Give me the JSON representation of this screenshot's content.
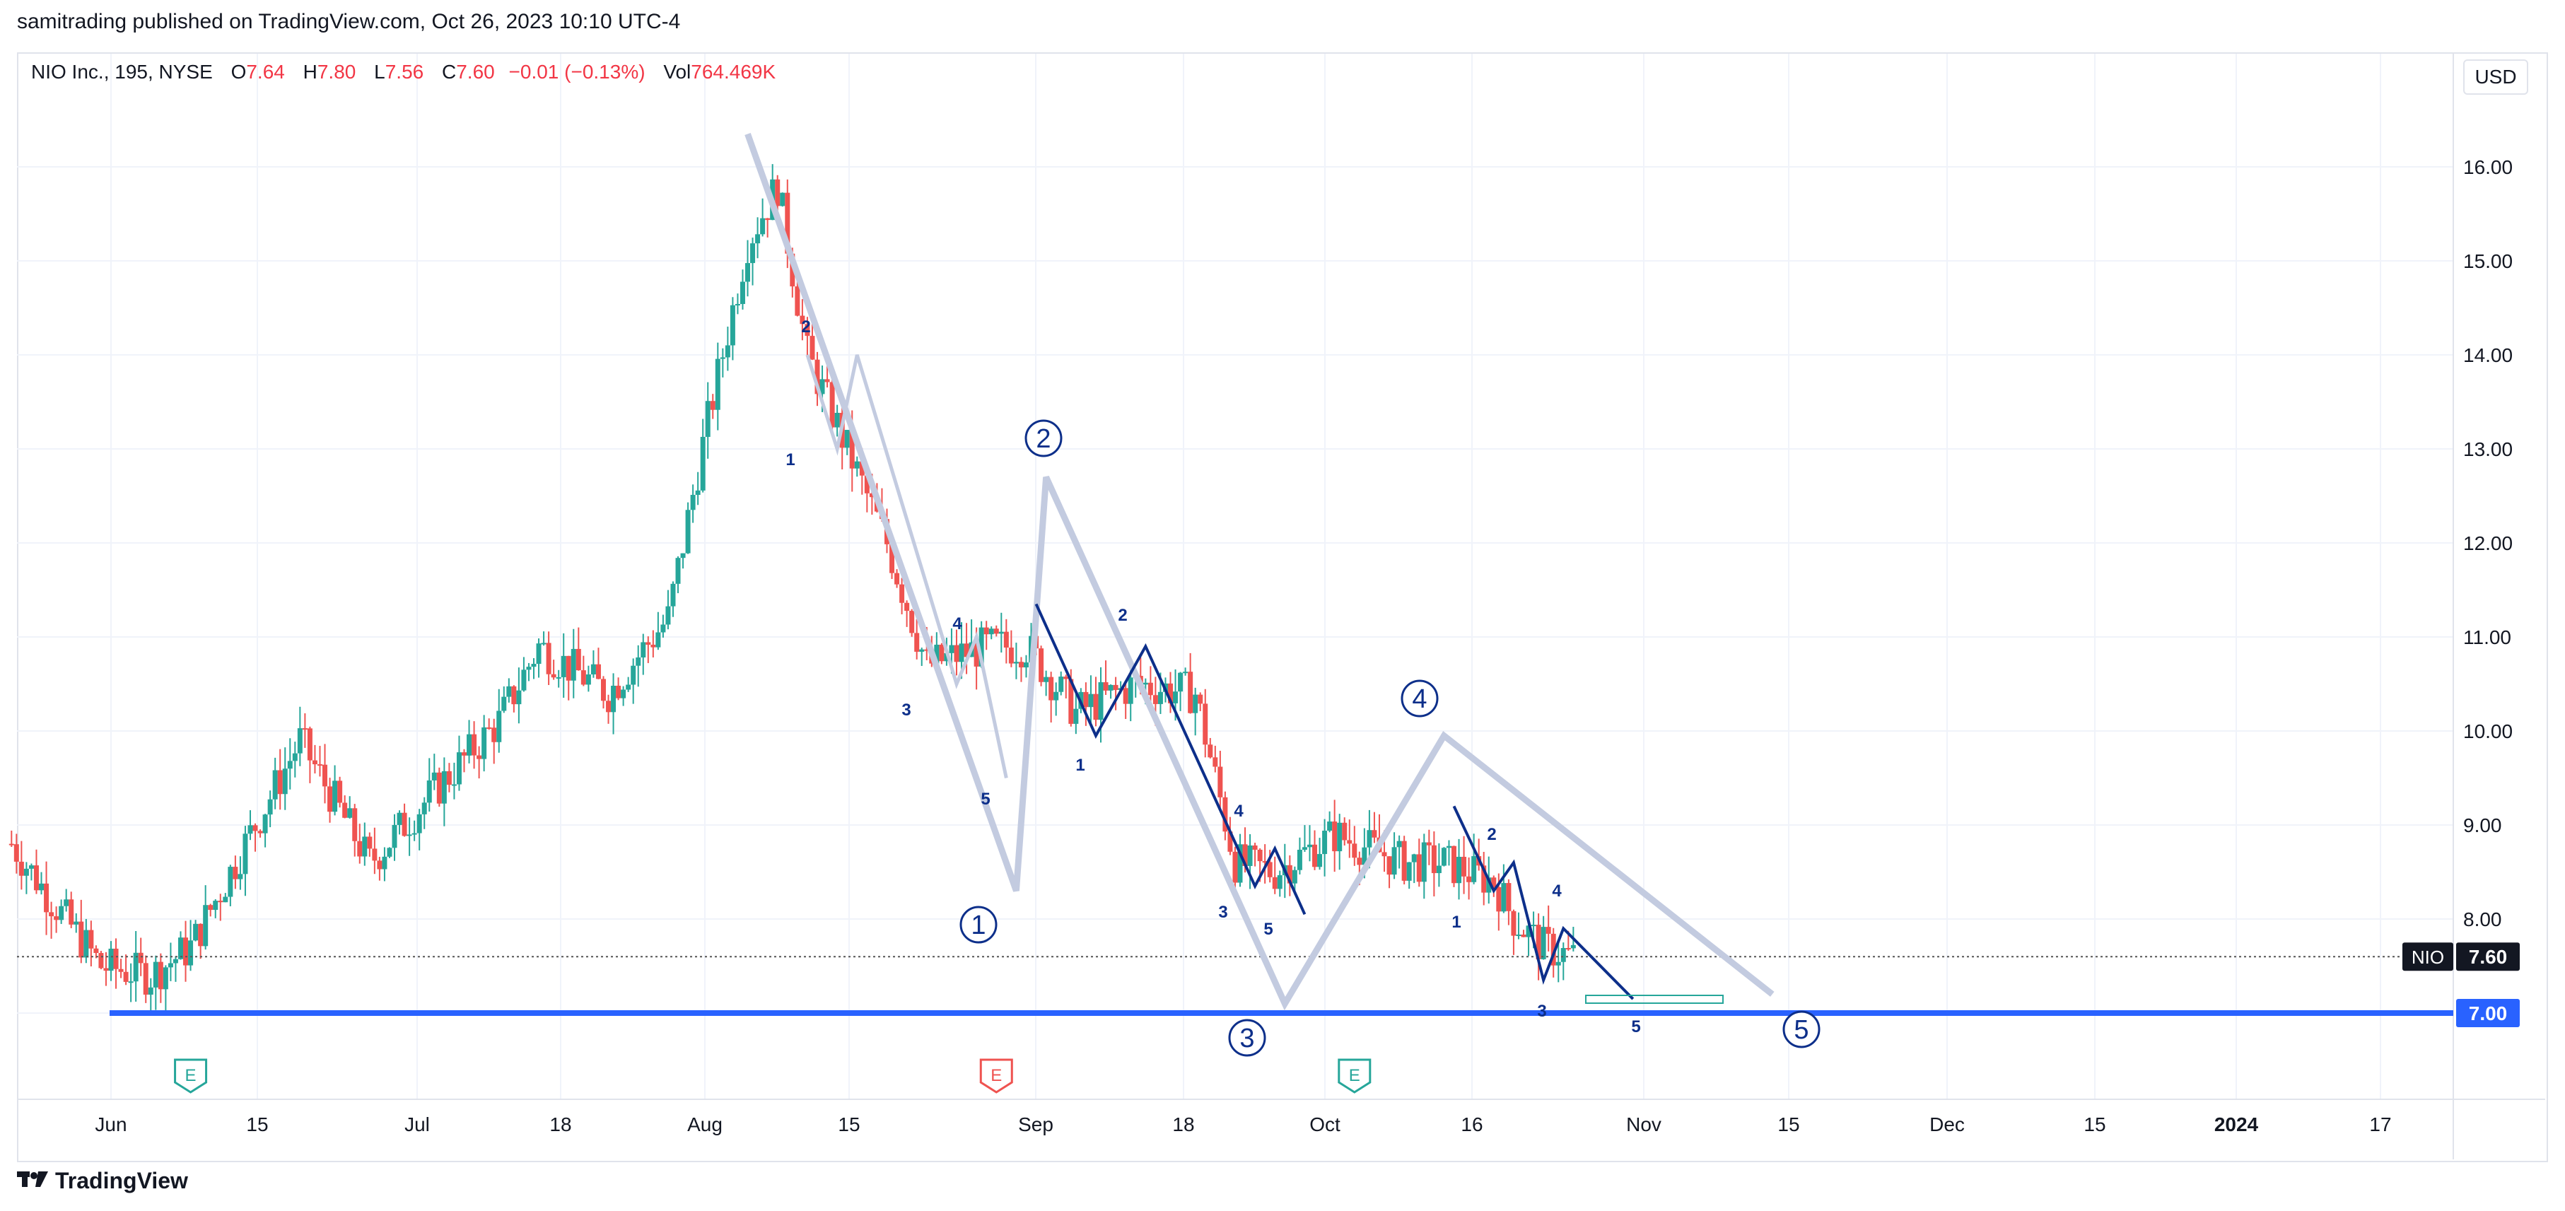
{
  "header": {
    "published": "samitrading published on TradingView.com, Oct 26, 2023 10:10 UTC-4"
  },
  "legend": {
    "symbol": "NIO Inc., 195, NYSE",
    "open_label": "O",
    "open": "7.64",
    "high_label": "H",
    "high": "7.80",
    "low_label": "L",
    "low": "7.56",
    "close_label": "C",
    "close": "7.60",
    "change": "−0.01 (−0.13%)",
    "vol_label": "Vol",
    "vol": "764.469K"
  },
  "currency_button": "USD",
  "footer": {
    "brand": "TradingView",
    "logo_icon": "tradingview-logo-icon"
  },
  "colors": {
    "up": "#26a69a",
    "down": "#ef5350",
    "support": "#2962ff",
    "wave_dark": "#0d2f8a",
    "wave_light": "#c3cbe0"
  },
  "chart_data": {
    "type": "candlestick",
    "title": "",
    "ylim": [
      6.0,
      16.7
    ],
    "y_ticks": [
      "16.00",
      "15.00",
      "14.00",
      "13.00",
      "12.00",
      "11.00",
      "10.00",
      "9.00",
      "8.00",
      "7.00"
    ],
    "x_ticks": [
      "Jun",
      "15",
      "Jul",
      "18",
      "Aug",
      "15",
      "Sep",
      "18",
      "Oct",
      "16",
      "Nov",
      "15",
      "Dec",
      "15",
      "2024",
      "17"
    ],
    "price_labels": [
      {
        "symbol": "NIO",
        "value": "7.60"
      },
      {
        "value": "7.00"
      }
    ],
    "support_level": 7.0,
    "last_price": 7.6,
    "earnings_markers": [
      {
        "date": "Jun 9",
        "label": "E",
        "kind": "positive"
      },
      {
        "date": "Aug 29",
        "label": "E",
        "kind": "negative"
      },
      {
        "date": "Oct 4",
        "label": "E",
        "kind": "positive"
      }
    ],
    "price_path": [
      [
        "May 22",
        8.8
      ],
      [
        "May 26",
        8.2
      ],
      [
        "May 31",
        7.5
      ],
      [
        "Jun 5",
        7.4
      ],
      [
        "Jun 9",
        7.7
      ],
      [
        "Jun 14",
        8.7
      ],
      [
        "Jun 20",
        9.9
      ],
      [
        "Jun 27",
        8.6
      ],
      [
        "Jul 3",
        9.3
      ],
      [
        "Jul 10",
        10.1
      ],
      [
        "Jul 14",
        10.9
      ],
      [
        "Jul 21",
        10.4
      ],
      [
        "Jul 27",
        11.2
      ],
      [
        "Jul 31",
        13.3
      ],
      [
        "Aug 4",
        15.2
      ],
      [
        "Aug 7",
        15.8
      ],
      [
        "Aug 10",
        14.0
      ],
      [
        "Aug 14",
        13.0
      ],
      [
        "Aug 18",
        12.0
      ],
      [
        "Aug 22",
        10.7
      ],
      [
        "Aug 28",
        10.9
      ],
      [
        "Sep 1",
        10.9
      ],
      [
        "Sep 6",
        10.2
      ],
      [
        "Sep 12",
        10.5
      ],
      [
        "Sep 18",
        10.4
      ],
      [
        "Sep 22",
        8.6
      ],
      [
        "Sep 26",
        8.5
      ],
      [
        "Oct 2",
        8.9
      ],
      [
        "Oct 9",
        8.6
      ],
      [
        "Oct 13",
        8.6
      ],
      [
        "Oct 18",
        8.4
      ],
      [
        "Oct 20",
        8.0
      ],
      [
        "Oct 23",
        7.7
      ],
      [
        "Oct 26",
        7.6
      ]
    ],
    "elliott_waves": {
      "major": [
        {
          "label": "①",
          "text": "1",
          "date": "Aug 31",
          "price": 8.3
        },
        {
          "label": "②",
          "text": "2",
          "date": "Sep 3",
          "price": 12.7
        },
        {
          "label": "③",
          "text": "3",
          "date": "Sep 27",
          "price": 7.1
        },
        {
          "label": "④",
          "text": "4",
          "date": "Oct 13",
          "price": 9.95
        },
        {
          "label": "⑤",
          "text": "5",
          "date": "Nov 15",
          "price": 7.2
        }
      ],
      "major_start": {
        "date": "Aug 4",
        "price": 16.35
      },
      "minor_labels": [
        "2",
        "1",
        "4",
        "3",
        "5",
        "2",
        "1",
        "4",
        "3",
        "5",
        "2",
        "1",
        "4",
        "3",
        "5"
      ]
    }
  }
}
